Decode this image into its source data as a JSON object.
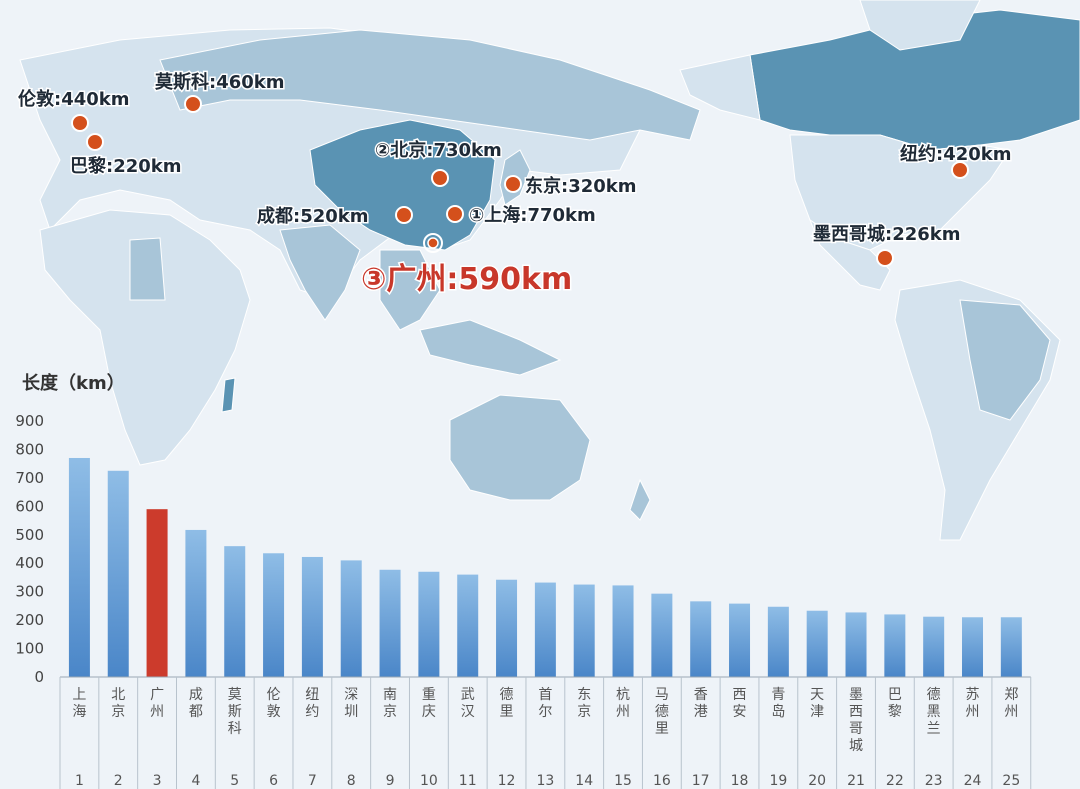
{
  "chart_data": [
    {
      "type": "map",
      "markers": [
        {
          "name": "伦敦",
          "label": "伦敦:440km",
          "value": 440,
          "unit": "km",
          "lon": -0.1,
          "lat": 51.5
        },
        {
          "name": "莫斯科",
          "label": "莫斯科:460km",
          "value": 460,
          "unit": "km",
          "lon": 37.6,
          "lat": 55.8
        },
        {
          "name": "巴黎",
          "label": "巴黎:220km",
          "value": 220,
          "unit": "km",
          "lon": 2.35,
          "lat": 48.9
        },
        {
          "name": "北京",
          "label": "②北京:730km",
          "value": 730,
          "unit": "km",
          "lon": 116.4,
          "lat": 39.9
        },
        {
          "name": "东京",
          "label": "东京:320km",
          "value": 320,
          "unit": "km",
          "lon": 139.7,
          "lat": 35.7
        },
        {
          "name": "成都",
          "label": "成都:520km",
          "value": 520,
          "unit": "km",
          "lon": 104.1,
          "lat": 30.7
        },
        {
          "name": "上海",
          "label": "①上海:770km",
          "value": 770,
          "unit": "km",
          "lon": 121.5,
          "lat": 31.2
        },
        {
          "name": "广州",
          "label": "③广州:590km",
          "value": 590,
          "unit": "km",
          "lon": 113.3,
          "lat": 23.1,
          "highlight": true
        },
        {
          "name": "纽约",
          "label": "纽约:420km",
          "value": 420,
          "unit": "km",
          "lon": -74.0,
          "lat": 40.7
        },
        {
          "name": "墨西哥城",
          "label": "墨西哥城:226km",
          "value": 226,
          "unit": "km",
          "lon": -99.1,
          "lat": 19.4
        }
      ]
    },
    {
      "type": "bar",
      "ylabel": "长度（km）",
      "ylim": [
        0,
        900
      ],
      "yticks": [
        0,
        100,
        200,
        300,
        400,
        500,
        600,
        700,
        800,
        900
      ],
      "grid": false,
      "categories": [
        "上海",
        "北京",
        "广州",
        "成都",
        "莫斯科",
        "伦敦",
        "纽约",
        "深圳",
        "南京",
        "重庆",
        "武汉",
        "德里",
        "首尔",
        "东京",
        "杭州",
        "马德里",
        "香港",
        "西安",
        "青岛",
        "天津",
        "墨西哥城",
        "巴黎",
        "德黑兰",
        "苏州",
        "郑州"
      ],
      "ranks": [
        "1",
        "2",
        "3",
        "4",
        "5",
        "6",
        "7",
        "8",
        "9",
        "10",
        "11",
        "12",
        "13",
        "14",
        "15",
        "16",
        "17",
        "18",
        "19",
        "20",
        "21",
        "22",
        "23",
        "24",
        "25"
      ],
      "values": [
        770,
        725,
        590,
        517,
        460,
        435,
        422,
        410,
        377,
        370,
        360,
        342,
        332,
        325,
        322,
        293,
        266,
        258,
        247,
        233,
        227,
        220,
        212,
        210,
        210
      ],
      "highlight_index": 2
    }
  ],
  "colors": {
    "background": "#eef3f8",
    "ocean": "#eef3f8",
    "land_light": "#d5e3ee",
    "land_mid": "#a8c5d8",
    "land_dark": "#5a93b3",
    "marker": "#d4501c",
    "highlight": "#c8372a",
    "bar_top": "#8fbde6",
    "bar_bottom": "#4a86c8",
    "bar_highlight": "#cc3b2c"
  }
}
